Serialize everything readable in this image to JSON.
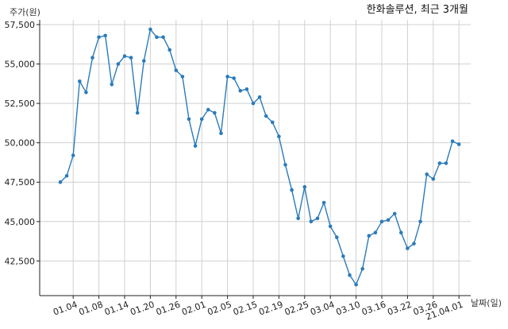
{
  "chart_data": {
    "type": "line",
    "title": "한화솔루션, 최근 3개월",
    "ylabel": "주가(원)",
    "xlabel": "날짜(일)",
    "ylim": [
      40300,
      57800
    ],
    "yticks": [
      42500,
      45000,
      47500,
      50000,
      52500,
      55000,
      57500
    ],
    "ytick_labels": [
      "42,500",
      "45,000",
      "47,500",
      "50,000",
      "52,500",
      "55,000",
      "57,500"
    ],
    "grid": true,
    "line_color": "#2b7bba",
    "x_labels": [
      "01.04",
      "01.08",
      "01.14",
      "01.20",
      "01.26",
      "02.01",
      "02.05",
      "02.15",
      "02.19",
      "02.25",
      "03.04",
      "03.10",
      "03.16",
      "03.22",
      "03.26",
      "21.04.01"
    ],
    "x_label_index": [
      2,
      6,
      10,
      14,
      18,
      22,
      26,
      30,
      34,
      38,
      42,
      46,
      50,
      54,
      58,
      62
    ],
    "series": [
      {
        "values": [
          47500,
          47900,
          49200,
          53900,
          53200,
          55400,
          56700,
          56800,
          53700,
          55000,
          55500,
          55400,
          51900,
          55200,
          57200,
          56700,
          56700,
          55900,
          54600,
          54200,
          51500,
          49800,
          51500,
          52100,
          51900,
          50600,
          54200,
          54100,
          53300,
          53400,
          52500,
          52900,
          51700,
          51300,
          50400,
          48600,
          47000,
          45200,
          47200,
          45000,
          45200,
          46200,
          44700,
          44000,
          42800,
          41600,
          41000,
          42000,
          44100,
          44300,
          45000,
          45100,
          45500,
          44300,
          43300,
          43600,
          45000,
          48000,
          47700,
          48700,
          48700,
          50100,
          49900
        ]
      }
    ]
  }
}
